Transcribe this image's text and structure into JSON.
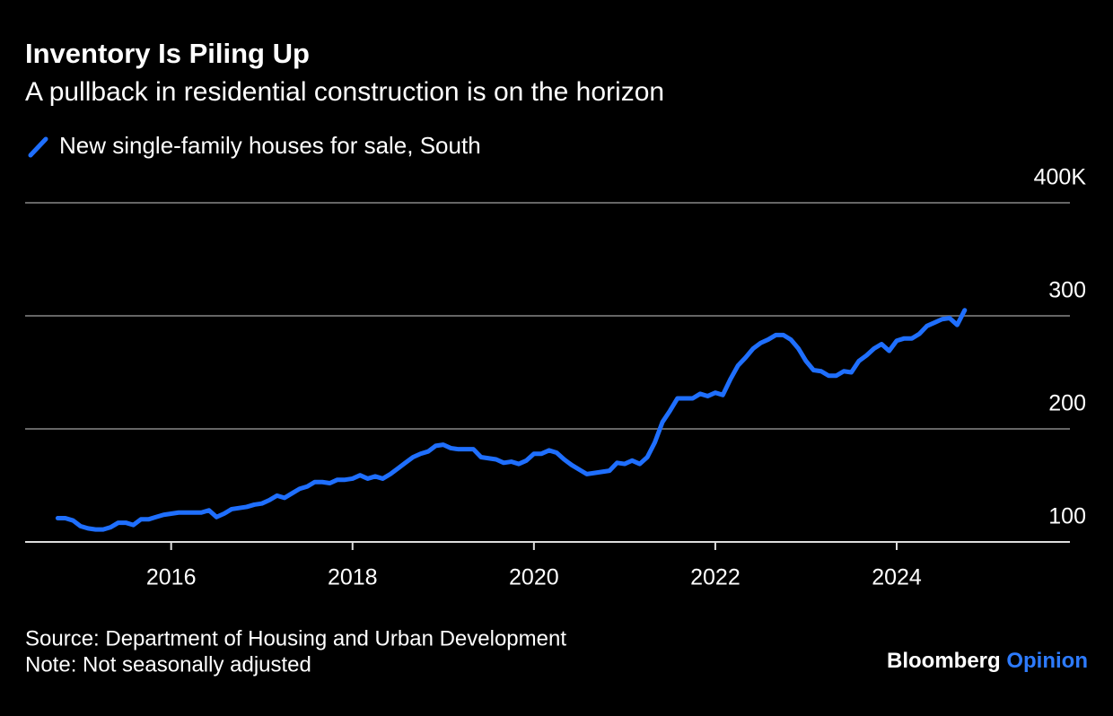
{
  "chart_data": {
    "type": "line",
    "title": "Inventory Is Piling Up",
    "subtitle": "A pullback in residential construction is on the horizon",
    "source": "Source: Department of Housing and Urban Development",
    "note": "Note: Not seasonally adjusted",
    "brand": {
      "name": "Bloomberg",
      "section": "Opinion"
    },
    "x": [
      2014.75,
      2014.833,
      2014.917,
      2015,
      2015.083,
      2015.167,
      2015.25,
      2015.333,
      2015.417,
      2015.5,
      2015.583,
      2015.667,
      2015.75,
      2015.833,
      2015.917,
      2016,
      2016.083,
      2016.167,
      2016.25,
      2016.333,
      2016.417,
      2016.5,
      2016.583,
      2016.667,
      2016.75,
      2016.833,
      2016.917,
      2017,
      2017.083,
      2017.167,
      2017.25,
      2017.333,
      2017.417,
      2017.5,
      2017.583,
      2017.667,
      2017.75,
      2017.833,
      2017.917,
      2018,
      2018.083,
      2018.167,
      2018.25,
      2018.333,
      2018.417,
      2018.5,
      2018.583,
      2018.667,
      2018.75,
      2018.833,
      2018.917,
      2019,
      2019.083,
      2019.167,
      2019.25,
      2019.333,
      2019.417,
      2019.5,
      2019.583,
      2019.667,
      2019.75,
      2019.833,
      2019.917,
      2020,
      2020.083,
      2020.167,
      2020.25,
      2020.333,
      2020.417,
      2020.5,
      2020.583,
      2020.667,
      2020.75,
      2020.833,
      2020.917,
      2021,
      2021.083,
      2021.167,
      2021.25,
      2021.333,
      2021.417,
      2021.5,
      2021.583,
      2021.667,
      2021.75,
      2021.833,
      2021.917,
      2022,
      2022.083,
      2022.167,
      2022.25,
      2022.333,
      2022.417,
      2022.5,
      2022.583,
      2022.667,
      2022.75,
      2022.833,
      2022.917,
      2023,
      2023.083,
      2023.167,
      2023.25,
      2023.333,
      2023.417,
      2023.5,
      2023.583,
      2023.667,
      2023.75,
      2023.833,
      2023.917,
      2024,
      2024.083,
      2024.167,
      2024.25,
      2024.333,
      2024.417,
      2024.5,
      2024.583,
      2024.667,
      2024.75
    ],
    "series": [
      {
        "name": "New single-family houses for sale, South",
        "color": "#1f6fff",
        "values": [
          121,
          121,
          119,
          114,
          112,
          111,
          111,
          113,
          117,
          117,
          115,
          120,
          120,
          122,
          124,
          125,
          126,
          126,
          126,
          126,
          128,
          122,
          125,
          129,
          130,
          131,
          133,
          134,
          137,
          141,
          139,
          143,
          147,
          149,
          153,
          153,
          152,
          155,
          155,
          156,
          159,
          156,
          158,
          156,
          160,
          165,
          170,
          175,
          178,
          180,
          185,
          186,
          183,
          182,
          182,
          182,
          175,
          174,
          173,
          170,
          171,
          169,
          172,
          178,
          178,
          181,
          179,
          173,
          168,
          164,
          160,
          161,
          162,
          163,
          170,
          169,
          172,
          169,
          175,
          188,
          206,
          216,
          227,
          227,
          227,
          231,
          229,
          232,
          230,
          244,
          256,
          263,
          271,
          276,
          279,
          283,
          283,
          279,
          271,
          260,
          252,
          251,
          247,
          247,
          251,
          250,
          260,
          265,
          271,
          275,
          269,
          278,
          280,
          280,
          284,
          291,
          294,
          297,
          298,
          292,
          305
        ]
      }
    ],
    "xlim": [
      2014.39,
      2025.91
    ],
    "xticks": [
      2016,
      2018,
      2020,
      2022,
      2024
    ],
    "ylim": [
      100,
      400
    ],
    "yticks": [
      100,
      200,
      300,
      {
        "value": 400,
        "label": "400K"
      }
    ],
    "grid": true
  }
}
